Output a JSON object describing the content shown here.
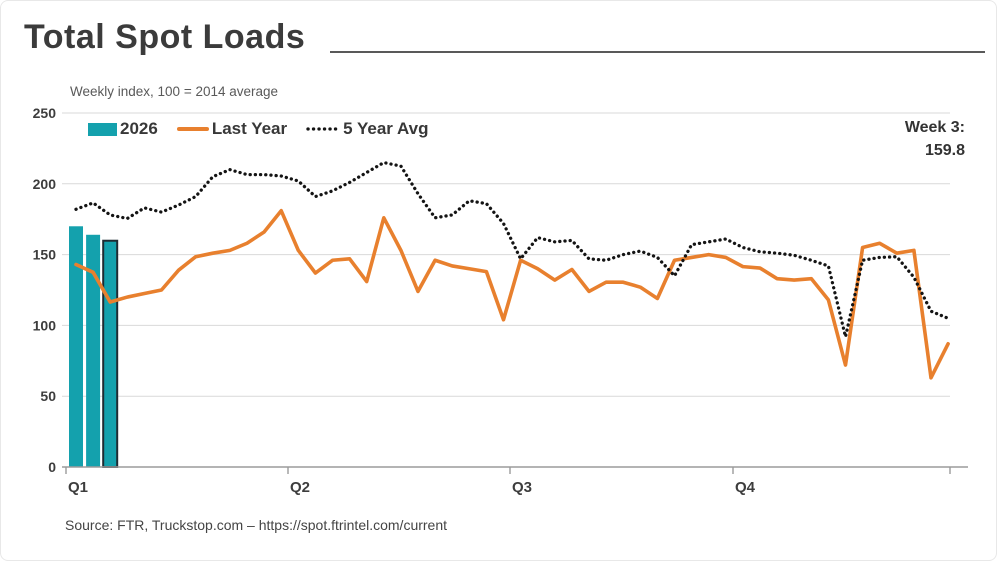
{
  "title": "Total Spot Loads",
  "subtitle": "Weekly index, 100 = 2014 average",
  "annotation": {
    "week_label": "Week 3:",
    "week_value": "159.8"
  },
  "source_note": "Source: FTR, Truckstop.com – https://spot.ftrintel.com/current",
  "legend": {
    "items": [
      {
        "label": "2026",
        "swatch": "bar"
      },
      {
        "label": "Last Year",
        "swatch": "line"
      },
      {
        "label": "5 Year Avg",
        "swatch": "dotted"
      }
    ]
  },
  "colors": {
    "teal": "#14a1ad",
    "orange": "#e8802e",
    "dotted_black": "#141414",
    "grid": "#d9d9d9",
    "axis": "#9b9b9b",
    "label_dark": "#3d3d3d",
    "bar_outline": "#1e2b33"
  },
  "chart_data": {
    "type": "bar+line combo",
    "title": "Total Spot Loads",
    "subtitle": "Weekly index, 100 = 2014 average",
    "x_unit": "week of year, 1-52 (13 weeks per quarter)",
    "x_axis_labels": [
      "Q1",
      "Q2",
      "Q3",
      "Q4"
    ],
    "quarter_start_weeks": [
      1,
      14,
      27,
      40
    ],
    "ylim": [
      0,
      250
    ],
    "y_ticks": [
      0,
      50,
      100,
      150,
      200,
      250
    ],
    "grid": "horizontal",
    "legend_position": "top-left",
    "current_week": {
      "label": "Week 3:",
      "value": 159.8
    },
    "series": [
      {
        "name": "2026",
        "type": "bar",
        "weeks": [
          1,
          2,
          3
        ],
        "values": [
          170,
          164,
          159.8
        ],
        "note": "last bar outlined (current week)"
      },
      {
        "name": "Last Year",
        "type": "line",
        "values": [
          143,
          137.5,
          116.5,
          120,
          122.5,
          125,
          139,
          148.5,
          151,
          153,
          158,
          166,
          181,
          153,
          137,
          146,
          147,
          131,
          176,
          153,
          124,
          146,
          142,
          140,
          138,
          104,
          146,
          140,
          132,
          139.5,
          124,
          130.5,
          130.5,
          127,
          119,
          146,
          148,
          150,
          148,
          141.5,
          140.5,
          133,
          132,
          133,
          118,
          72,
          155,
          158,
          151,
          153,
          63,
          87
        ]
      },
      {
        "name": "5 Year Avg",
        "type": "dotted-line",
        "values": [
          182,
          186.5,
          178,
          175.5,
          183,
          180,
          185,
          191,
          205,
          210,
          206.5,
          206.5,
          205.5,
          202,
          191,
          195,
          201,
          208,
          215,
          212.5,
          193,
          176,
          178,
          188,
          186,
          172,
          147,
          162,
          159,
          160,
          147,
          146,
          150,
          152.5,
          148,
          135,
          157,
          159,
          161,
          155,
          152,
          151,
          149.5,
          146,
          142,
          92,
          146,
          148,
          148.5,
          134,
          110,
          105
        ]
      }
    ]
  }
}
